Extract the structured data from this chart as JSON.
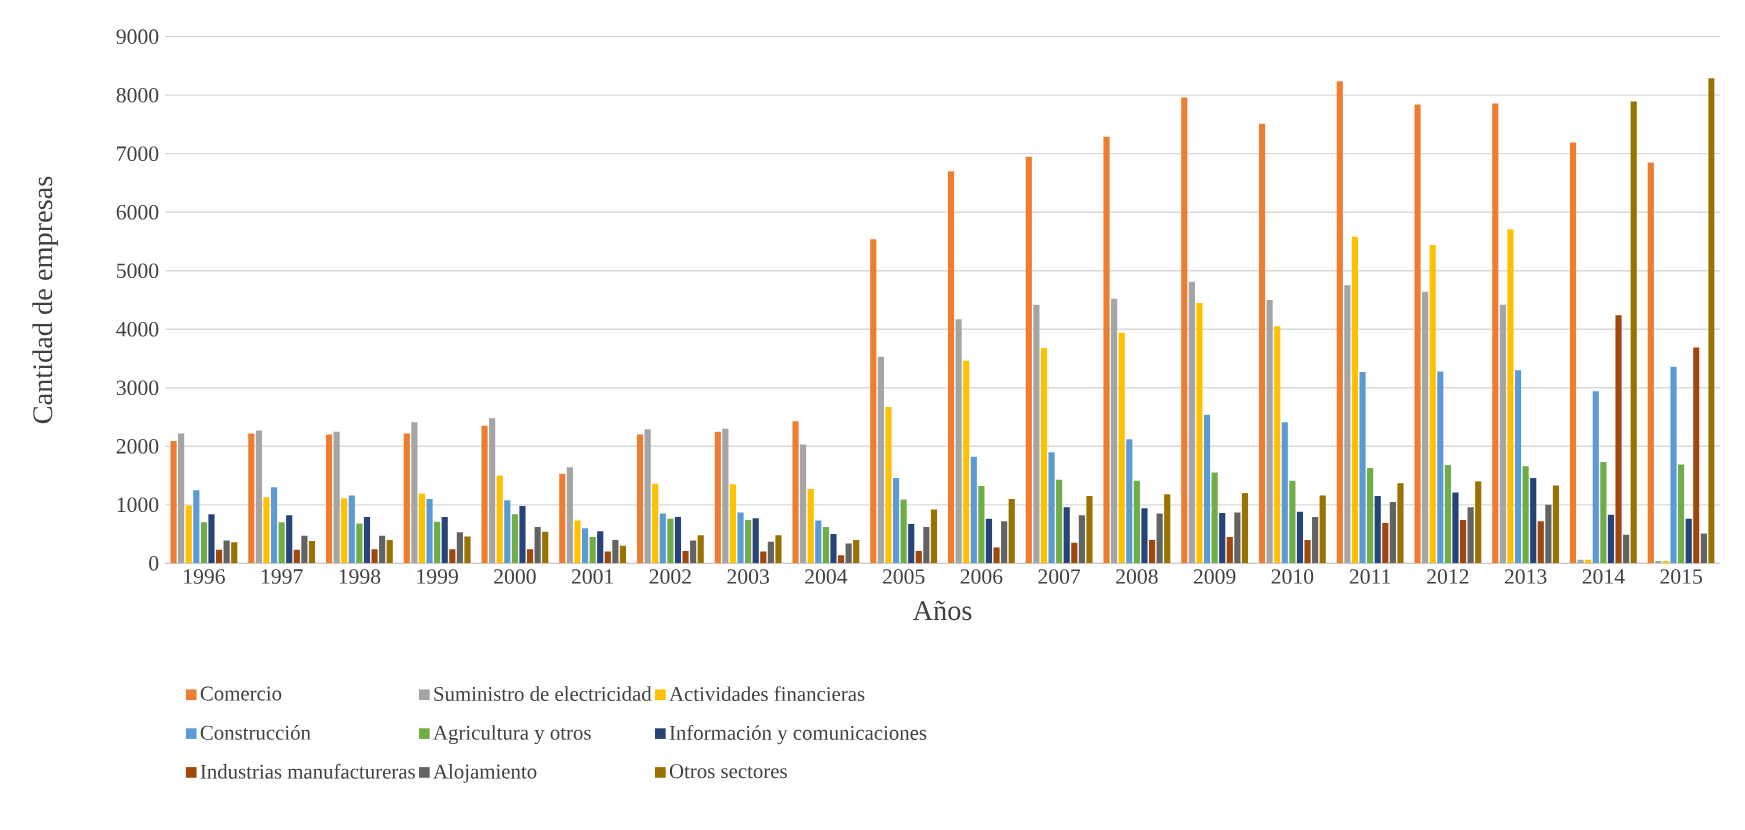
{
  "chart_data": {
    "type": "bar",
    "xlabel": "Años",
    "ylabel": "Cantidad de empresas",
    "categories": [
      "1996",
      "1997",
      "1998",
      "1999",
      "2000",
      "2001",
      "2002",
      "2003",
      "2004",
      "2005",
      "2006",
      "2007",
      "2008",
      "2009",
      "2010",
      "2011",
      "2012",
      "2013",
      "2014",
      "2015"
    ],
    "ylim": [
      0,
      9000
    ],
    "yticks": [
      0,
      1000,
      2000,
      3000,
      4000,
      5000,
      6000,
      7000,
      8000,
      9000
    ],
    "grid": "y",
    "legend": "bottom",
    "series": [
      {
        "name": "Comercio",
        "color": "#ed7d31",
        "values": [
          2090,
          2220,
          2200,
          2220,
          2350,
          1530,
          2200,
          2250,
          2430,
          5540,
          6700,
          6950,
          7290,
          7960,
          7510,
          8240,
          7840,
          7860,
          7190,
          6850
        ]
      },
      {
        "name": "Suministro de electricidad",
        "color": "#a5a5a5",
        "values": [
          2220,
          2270,
          2250,
          2410,
          2480,
          1640,
          2290,
          2300,
          2030,
          3530,
          4170,
          4420,
          4520,
          4810,
          4500,
          4750,
          4640,
          4420,
          60,
          40
        ]
      },
      {
        "name": "Actividades financieras",
        "color": "#ffc000",
        "values": [
          990,
          1130,
          1110,
          1190,
          1500,
          730,
          1360,
          1350,
          1270,
          2670,
          3460,
          3680,
          3940,
          4450,
          4050,
          5580,
          5440,
          5710,
          60,
          40
        ]
      },
      {
        "name": "Construcción",
        "color": "#5b9bd5",
        "values": [
          1250,
          1300,
          1160,
          1100,
          1080,
          600,
          850,
          870,
          730,
          1460,
          1820,
          1900,
          2120,
          2540,
          2410,
          3270,
          3280,
          3300,
          2940,
          3360
        ]
      },
      {
        "name": "Agricultura y otros",
        "color": "#70ad47",
        "values": [
          700,
          700,
          680,
          710,
          840,
          450,
          760,
          740,
          620,
          1090,
          1320,
          1430,
          1410,
          1550,
          1410,
          1630,
          1680,
          1660,
          1730,
          1690
        ]
      },
      {
        "name": "Información y comunicaciones",
        "color": "#264478",
        "values": [
          840,
          820,
          790,
          790,
          980,
          550,
          790,
          770,
          500,
          670,
          760,
          960,
          940,
          860,
          880,
          1150,
          1210,
          1460,
          830,
          760
        ]
      },
      {
        "name": "Industrias manufactureras",
        "color": "#9e480e",
        "values": [
          230,
          230,
          240,
          240,
          240,
          200,
          210,
          200,
          140,
          210,
          270,
          350,
          400,
          450,
          400,
          690,
          740,
          720,
          4240,
          3690
        ]
      },
      {
        "name": "Alojamiento",
        "color": "#636363",
        "values": [
          390,
          470,
          470,
          530,
          620,
          400,
          390,
          370,
          340,
          620,
          720,
          820,
          850,
          870,
          790,
          1050,
          960,
          1000,
          490,
          510
        ]
      },
      {
        "name": "Otros sectores",
        "color": "#997300",
        "values": [
          360,
          380,
          400,
          460,
          540,
          300,
          480,
          480,
          400,
          920,
          1100,
          1150,
          1180,
          1200,
          1160,
          1370,
          1400,
          1330,
          7890,
          8290
        ]
      }
    ]
  }
}
